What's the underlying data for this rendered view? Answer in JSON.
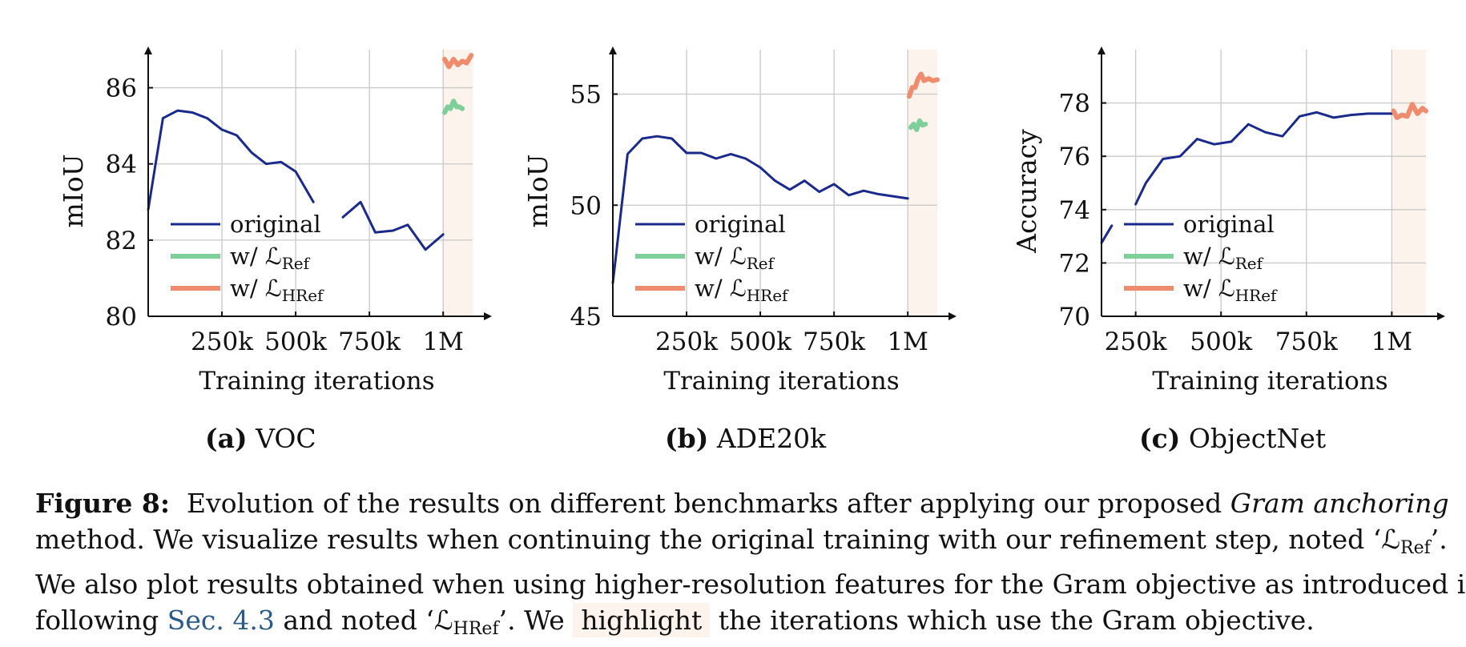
{
  "colors": {
    "original": "#1a2a8c",
    "ref": "#7fcf9a",
    "href": "#ef8c6e",
    "highlight": "#fbf3ec",
    "link": "#2a5a8a"
  },
  "legend": {
    "original": "original",
    "ref_prefix": "w/ ",
    "ref_sym": "ℒ",
    "ref_sub": "Ref",
    "href_prefix": "w/ ",
    "href_sym": "ℒ",
    "href_sub": "HRef"
  },
  "subfigures": [
    {
      "tag": "(a)",
      "name": "VOC"
    },
    {
      "tag": "(b)",
      "name": "ADE20k"
    },
    {
      "tag": "(c)",
      "name": "ObjectNet"
    }
  ],
  "chart_data": [
    {
      "type": "line",
      "xlabel": "Training iterations",
      "ylabel": "mIoU",
      "xlim": [
        0,
        1100
      ],
      "ylim": [
        80,
        87
      ],
      "xticks": [
        250,
        500,
        750,
        1000
      ],
      "xtick_labels": [
        "250k",
        "500k",
        "750k",
        "1M"
      ],
      "yticks": [
        80,
        82,
        84,
        86
      ],
      "ytick_labels": [
        "80",
        "82",
        "84",
        "86"
      ],
      "grid": true,
      "legend_position": "bottom-left",
      "highlight_from": 1000,
      "series": [
        {
          "key": "original",
          "segments": [
            [
              [
                0,
                82.8
              ],
              [
                50,
                85.2
              ],
              [
                100,
                85.4
              ],
              [
                150,
                85.35
              ],
              [
                200,
                85.2
              ],
              [
                250,
                84.9
              ],
              [
                300,
                84.75
              ],
              [
                350,
                84.3
              ],
              [
                400,
                84.0
              ],
              [
                450,
                84.05
              ],
              [
                500,
                83.8
              ],
              [
                560,
                83.0
              ]
            ],
            [
              [
                660,
                82.6
              ],
              [
                720,
                83.0
              ],
              [
                770,
                82.2
              ],
              [
                830,
                82.25
              ],
              [
                880,
                82.4
              ],
              [
                940,
                81.75
              ],
              [
                1000,
                82.15
              ]
            ]
          ]
        },
        {
          "key": "ref",
          "segments": [
            [
              [
                1005,
                85.35
              ],
              [
                1015,
                85.5
              ],
              [
                1025,
                85.45
              ],
              [
                1035,
                85.65
              ],
              [
                1045,
                85.5
              ],
              [
                1055,
                85.5
              ],
              [
                1065,
                85.45
              ]
            ]
          ]
        },
        {
          "key": "href",
          "segments": [
            [
              [
                1005,
                86.75
              ],
              [
                1020,
                86.55
              ],
              [
                1035,
                86.75
              ],
              [
                1050,
                86.6
              ],
              [
                1065,
                86.7
              ],
              [
                1080,
                86.65
              ],
              [
                1095,
                86.85
              ]
            ]
          ]
        }
      ]
    },
    {
      "type": "line",
      "xlabel": "Training iterations",
      "ylabel": "mIoU",
      "xlim": [
        0,
        1100
      ],
      "ylim": [
        45,
        57
      ],
      "xticks": [
        250,
        500,
        750,
        1000
      ],
      "xtick_labels": [
        "250k",
        "500k",
        "750k",
        "1M"
      ],
      "yticks": [
        45,
        50,
        55
      ],
      "ytick_labels": [
        "45",
        "50",
        "55"
      ],
      "grid": true,
      "legend_position": "bottom-left",
      "highlight_from": 1000,
      "series": [
        {
          "key": "original",
          "segments": [
            [
              [
                0,
                46.5
              ],
              [
                50,
                52.3
              ],
              [
                100,
                53.0
              ],
              [
                150,
                53.1
              ],
              [
                200,
                53.0
              ],
              [
                250,
                52.35
              ],
              [
                300,
                52.35
              ],
              [
                350,
                52.1
              ],
              [
                400,
                52.3
              ],
              [
                450,
                52.1
              ],
              [
                500,
                51.7
              ],
              [
                550,
                51.1
              ],
              [
                600,
                50.7
              ],
              [
                650,
                51.1
              ],
              [
                700,
                50.6
              ],
              [
                750,
                50.95
              ],
              [
                800,
                50.45
              ],
              [
                850,
                50.65
              ],
              [
                900,
                50.5
              ],
              [
                1000,
                50.3
              ]
            ]
          ]
        },
        {
          "key": "ref",
          "segments": [
            [
              [
                1010,
                53.5
              ],
              [
                1020,
                53.65
              ],
              [
                1030,
                53.4
              ],
              [
                1040,
                53.8
              ],
              [
                1050,
                53.6
              ],
              [
                1060,
                53.65
              ]
            ]
          ]
        },
        {
          "key": "href",
          "segments": [
            [
              [
                1005,
                54.9
              ],
              [
                1015,
                55.3
              ],
              [
                1025,
                55.3
              ],
              [
                1035,
                55.7
              ],
              [
                1045,
                55.9
              ],
              [
                1055,
                55.6
              ],
              [
                1070,
                55.7
              ],
              [
                1085,
                55.6
              ],
              [
                1100,
                55.65
              ]
            ]
          ]
        }
      ]
    },
    {
      "type": "line",
      "xlabel": "Training iterations",
      "ylabel": "Accuracy",
      "xlim": [
        150,
        1100
      ],
      "ylim": [
        70,
        80
      ],
      "xticks": [
        250,
        500,
        750,
        1000
      ],
      "xtick_labels": [
        "250k",
        "500k",
        "750k",
        "1M"
      ],
      "yticks": [
        70,
        72,
        74,
        76,
        78
      ],
      "ytick_labels": [
        "70",
        "72",
        "74",
        "76",
        "78"
      ],
      "grid": true,
      "legend_position": "bottom-left",
      "highlight_from": 1000,
      "series": [
        {
          "key": "original",
          "segments": [
            [
              [
                150,
                72.75
              ],
              [
                180,
                73.4
              ]
            ],
            [
              [
                250,
                74.2
              ],
              [
                280,
                75.0
              ],
              [
                330,
                75.9
              ],
              [
                380,
                76.0
              ],
              [
                430,
                76.65
              ],
              [
                480,
                76.45
              ],
              [
                530,
                76.55
              ],
              [
                580,
                77.2
              ],
              [
                630,
                76.9
              ],
              [
                680,
                76.75
              ],
              [
                730,
                77.5
              ],
              [
                780,
                77.65
              ],
              [
                830,
                77.45
              ],
              [
                880,
                77.55
              ],
              [
                930,
                77.6
              ],
              [
                1000,
                77.6
              ]
            ]
          ]
        },
        {
          "key": "href",
          "segments": [
            [
              [
                1005,
                77.7
              ],
              [
                1015,
                77.45
              ],
              [
                1030,
                77.55
              ],
              [
                1045,
                77.5
              ],
              [
                1060,
                77.95
              ],
              [
                1075,
                77.6
              ],
              [
                1090,
                77.8
              ],
              [
                1100,
                77.7
              ]
            ]
          ]
        }
      ]
    }
  ],
  "caption": {
    "label": "Figure 8:",
    "l1_a": "Evolution of the results on different benchmarks after applying our proposed ",
    "l1_em": "Gram anchoring",
    "l2_a": "method.  We visualize results when continuing the original training with our refinement step, noted ‘",
    "l2_sym": "ℒ",
    "l2_sub": "Ref",
    "l2_b": "’.",
    "l3": "We also plot results obtained when using higher-resolution features for the Gram objective as introduced in",
    "l4_a": "following ",
    "l4_link": "Sec. 4.3",
    "l4_b": " and noted ‘",
    "l4_sym": "ℒ",
    "l4_sub": "HRef",
    "l4_c": "’.  We ",
    "l4_hl": "highlight",
    "l4_d": " the iterations which use the Gram objective."
  }
}
